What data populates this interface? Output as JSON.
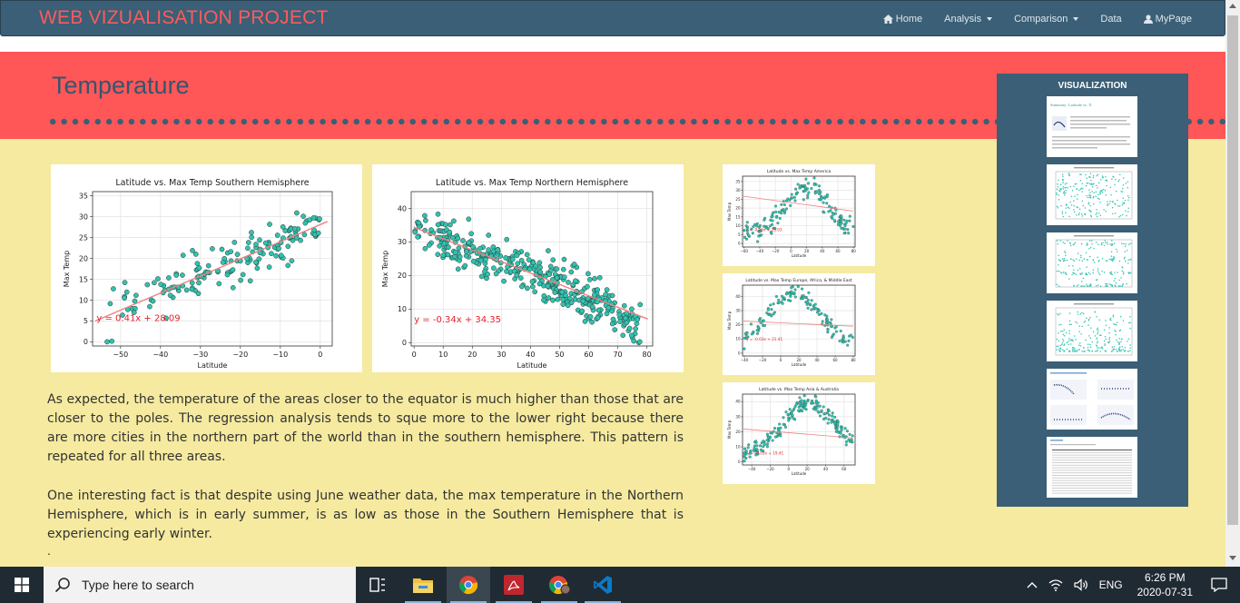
{
  "navbar": {
    "brand": "WEB VIZUALISATION PROJECT",
    "items": [
      {
        "label": "Home",
        "icon": "home-icon"
      },
      {
        "label": "Analysis",
        "dropdown": true
      },
      {
        "label": "Comparison",
        "dropdown": true
      },
      {
        "label": "Data"
      },
      {
        "label": "MyPage",
        "icon": "user-icon"
      }
    ]
  },
  "header": {
    "title": "Temperature"
  },
  "paragraphs": {
    "p1": "As expected, the temperature of the areas closer to the equator is much higher than those that are closer to the poles. The regression analysis tends to sque more to the lower right because there are more cities in the northern part of the world than in the southern hemisphere. This pattern is repeated for all three areas.",
    "p2": "One interesting fact is that despite using June weather data, the max temperature in the Northern Hemisphere, which is in early summer, is as low as those in the Southern Hemisphere that is experiencing early winter.",
    "p3": "."
  },
  "sidebar": {
    "title": "VISUALIZATION",
    "thumb1_title": "Summary: Latitude vs. X"
  },
  "chart_data": [
    {
      "type": "scatter",
      "title": "Latitude vs. Max Temp Southern Hemisphere",
      "xlabel": "Latitude",
      "ylabel": "Max Temp",
      "xlim": [
        -57,
        3
      ],
      "ylim": [
        -1,
        36
      ],
      "xticks": [
        -50,
        -40,
        -30,
        -20,
        -10,
        0
      ],
      "yticks": [
        0,
        5,
        10,
        15,
        20,
        25,
        30,
        35
      ],
      "regression": {
        "slope": 0.41,
        "intercept": 28.09,
        "label": "y = 0.41x + 28.09"
      },
      "annotation_at": [
        -56,
        5
      ],
      "grid": true,
      "point_color": "#2ec4b0",
      "line_color": "#f08080",
      "n_points": 160,
      "seed": 11
    },
    {
      "type": "scatter",
      "title": "Latitude vs. Max Temp Northern Hemisphere",
      "xlabel": "Latitude",
      "ylabel": "Max Temp",
      "xlim": [
        -1,
        82
      ],
      "ylim": [
        -1,
        45
      ],
      "xticks": [
        0,
        10,
        20,
        30,
        40,
        50,
        60,
        70,
        80
      ],
      "yticks": [
        0,
        10,
        20,
        30,
        40
      ],
      "regression": {
        "slope": -0.34,
        "intercept": 34.35,
        "label": "y = -0.34x + 34.35"
      },
      "annotation_at": [
        0,
        6
      ],
      "grid": true,
      "point_color": "#2ec4b0",
      "line_color": "#f08080",
      "n_points": 380,
      "seed": 23
    },
    {
      "type": "scatter",
      "title": "Latitude vs. Max Temp America",
      "xlabel": "Latitude",
      "ylabel": "Max Temp",
      "xlim": [
        -62,
        82
      ],
      "ylim": [
        -2,
        38
      ],
      "xticks": [
        -60,
        -40,
        -20,
        0,
        20,
        40,
        60,
        80
      ],
      "yticks": [
        0,
        5,
        10,
        15,
        20,
        25,
        30,
        35
      ],
      "regression": {
        "slope": -0.06,
        "intercept": 23.03,
        "label": "y = -0.06x + 23.03"
      },
      "annotation_at": [
        -58,
        7
      ],
      "curve": "bell",
      "peak_x": 20,
      "grid": true,
      "point_color": "#2ec4b0",
      "line_color": "#f08080",
      "n_points": 170,
      "seed": 37
    },
    {
      "type": "scatter",
      "title": "Latitude vs. Max Temp Europe, Africa, & Middle East",
      "xlabel": "Latitude",
      "ylabel": "Max Temp",
      "xlim": [
        -42,
        82
      ],
      "ylim": [
        -2,
        48
      ],
      "xticks": [
        -40,
        -20,
        0,
        20,
        40,
        60,
        80
      ],
      "yticks": [
        0,
        10,
        20,
        30,
        40
      ],
      "regression": {
        "slope": -0.03,
        "intercept": 21.41,
        "label": "y = -0.03x + 21.41"
      },
      "annotation_at": [
        -38,
        9
      ],
      "curve": "bell",
      "peak_x": 15,
      "grid": true,
      "point_color": "#2ec4b0",
      "line_color": "#f08080",
      "n_points": 140,
      "seed": 41
    },
    {
      "type": "scatter",
      "title": "Latitude vs. Max Temp Asia & Australia",
      "xlabel": "Latitude",
      "ylabel": "Max Temp",
      "xlim": [
        -50,
        72
      ],
      "ylim": [
        -2,
        45
      ],
      "xticks": [
        -40,
        -20,
        0,
        20,
        40,
        60
      ],
      "yticks": [
        0,
        10,
        20,
        30,
        40
      ],
      "regression": {
        "slope": -0.05,
        "intercept": 19.41,
        "label": "y = -0.05x + 19.41"
      },
      "annotation_at": [
        -45,
        5
      ],
      "curve": "bell",
      "peak_x": 22,
      "grid": true,
      "point_color": "#2ec4b0",
      "line_color": "#f08080",
      "n_points": 200,
      "seed": 53
    }
  ],
  "taskbar": {
    "search_placeholder": "Type here to search",
    "language": "ENG",
    "time": "6:26 PM",
    "date": "2020-07-31",
    "apps": [
      "task-view-icon",
      "file-explorer-icon",
      "chrome-icon",
      "acrobat-icon",
      "chrome-profile-icon",
      "vscode-icon"
    ]
  }
}
